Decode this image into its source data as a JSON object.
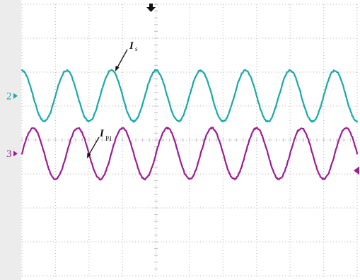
{
  "chart_data": {
    "type": "line",
    "title": "",
    "xlabel": "",
    "ylabel": "",
    "grid": true,
    "grid_style": "dotted, 10 horizontal by 8 vertical divisions, center cross",
    "background": "#ffffff",
    "series": [
      {
        "channel": "2",
        "color": "#1aa8a8",
        "annotation": {
          "symbol": "I",
          "subscript": "s"
        },
        "waveform": "sine",
        "cycles_shown": 7.5,
        "offset_div": 1.3,
        "amplitude_div": 0.75,
        "phase_deg": 90
      },
      {
        "channel": "3",
        "color": "#9a1f8f",
        "annotation": {
          "symbol": "I",
          "subscript": "P1"
        },
        "waveform": "sine",
        "cycles_shown": 7.5,
        "offset_div": -0.4,
        "amplitude_div": 0.75,
        "phase_deg": 0
      }
    ]
  }
}
